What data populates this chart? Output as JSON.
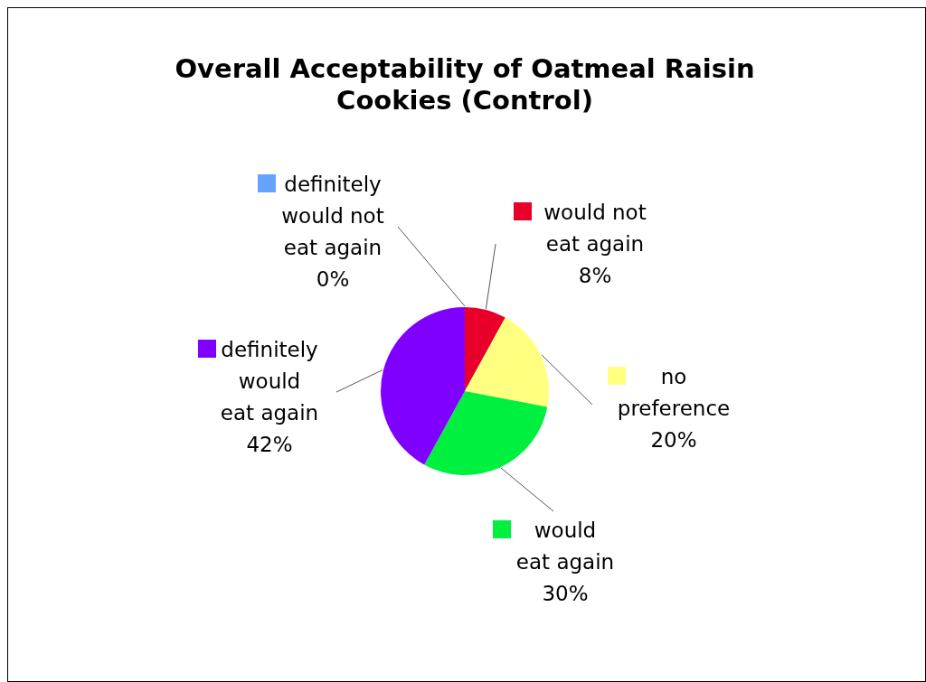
{
  "chart_data": {
    "type": "pie",
    "title": "Overall Acceptability of Oatmeal Raisin Cookies (Control)",
    "categories": [
      "definitely would not eat again",
      "would not eat again",
      "no preference",
      "would eat again",
      "definitely would eat again"
    ],
    "values": [
      0,
      8,
      20,
      30,
      42
    ],
    "colors": [
      "#66a3ff",
      "#e8002a",
      "#ffff80",
      "#00f040",
      "#8000ff"
    ],
    "value_labels": [
      "0%",
      "8%",
      "20%",
      "30%",
      "42%"
    ],
    "legend": "right"
  }
}
